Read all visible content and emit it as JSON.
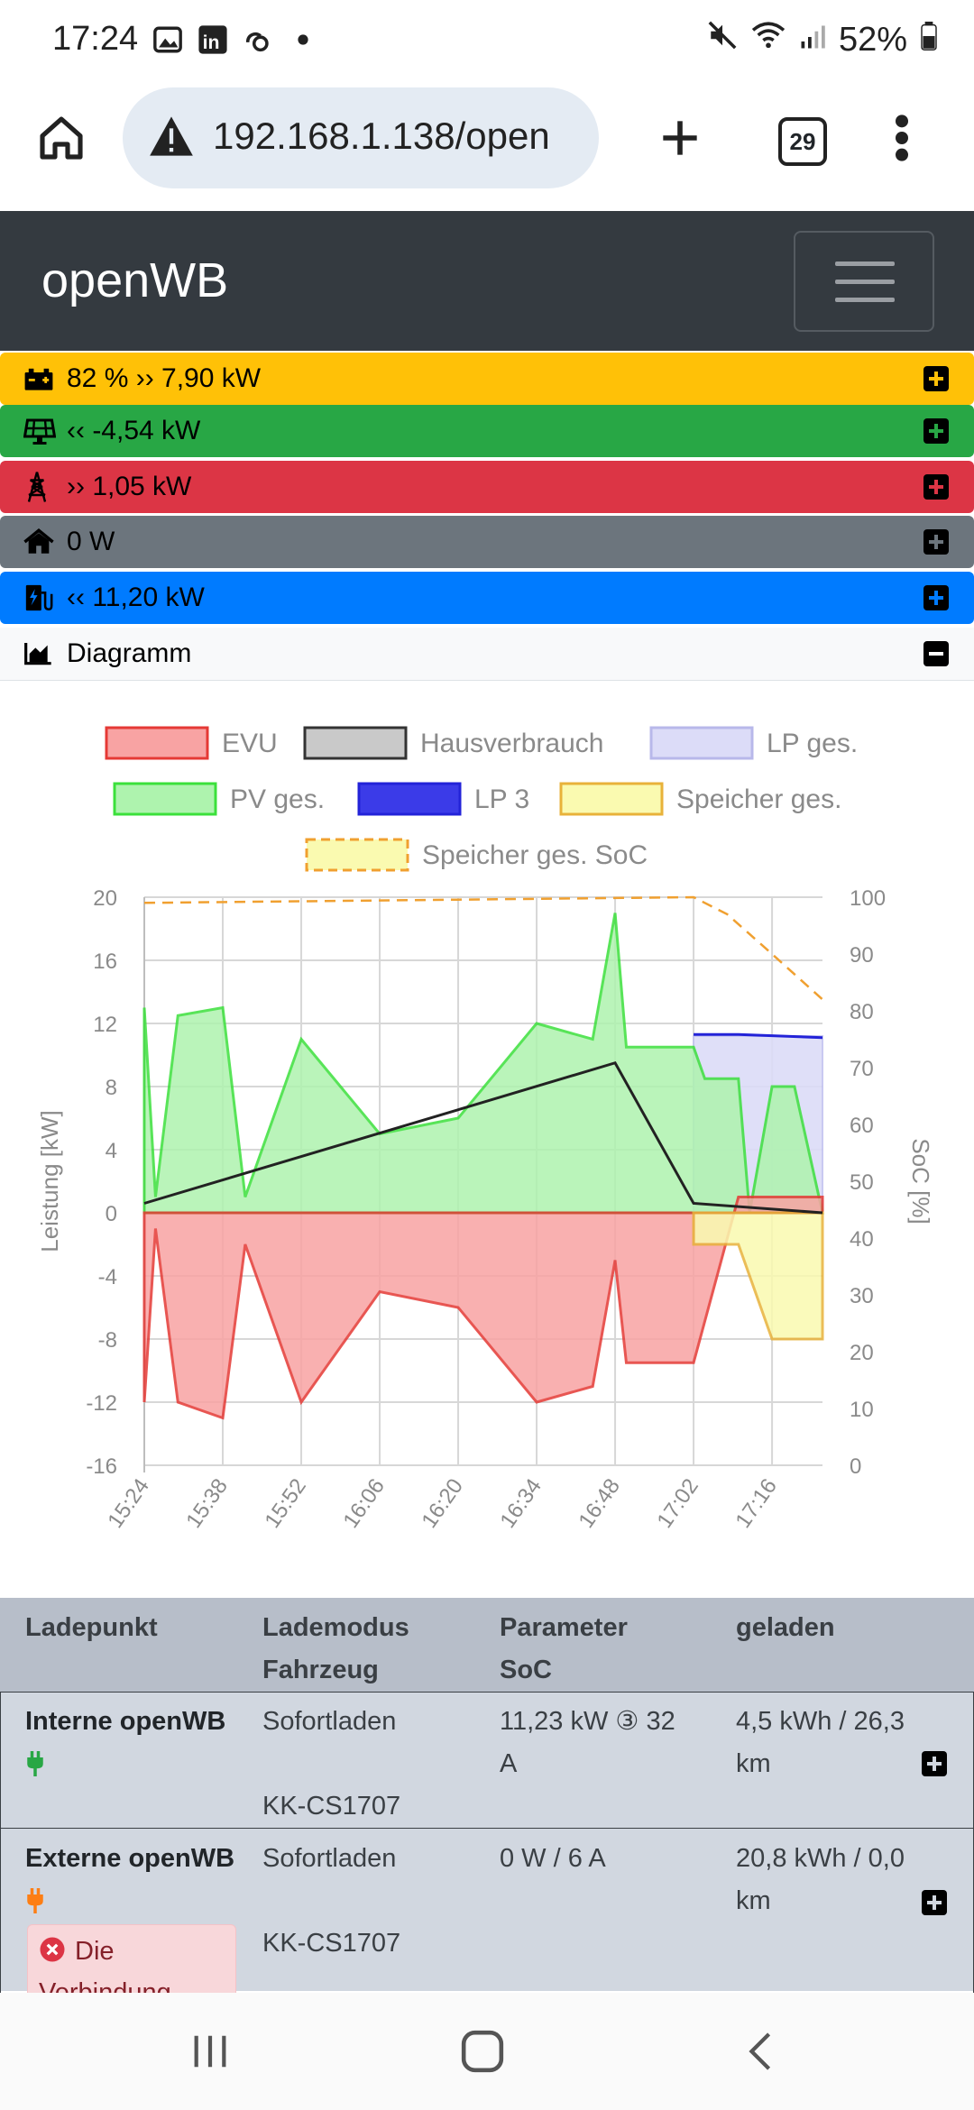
{
  "status_bar": {
    "time": "17:24",
    "battery": "52%",
    "icons": [
      "gallery-icon",
      "linkedin-icon",
      "wifi-calling-icon",
      "dot-icon",
      "mute-icon",
      "wifi-icon",
      "signal-icon",
      "battery-icon"
    ]
  },
  "browser": {
    "url": "192.168.1.138/open",
    "tab_count": "29"
  },
  "navbar": {
    "brand": "openWB"
  },
  "rows": {
    "battery": {
      "text": "82 % ›› 7,90 kW",
      "color": "#ffc107"
    },
    "pv": {
      "text": "‹‹ -4,54 kW",
      "color": "#28a745"
    },
    "grid": {
      "text": "›› 1,05 kW",
      "color": "#dc3545"
    },
    "house": {
      "text": "0 W",
      "color": "#6c757d"
    },
    "charge": {
      "text": "‹‹ 11,20 kW",
      "color": "#007bff"
    },
    "diagram": {
      "text": "Diagramm",
      "color": "#f8f9fa"
    }
  },
  "chart_data": {
    "type": "area",
    "legend": [
      "EVU",
      "Hausverbrauch",
      "LP ges.",
      "PV ges.",
      "LP 3",
      "Speicher ges.",
      "Speicher ges. SoC"
    ],
    "ylabel": "Leistung [kW]",
    "y2label": "SoC [%]",
    "ylim": [
      -16,
      20
    ],
    "y2lim": [
      0,
      100
    ],
    "yticks": [
      "20",
      "16",
      "12",
      "8",
      "4",
      "0",
      "-4",
      "-8",
      "-12",
      "-16"
    ],
    "y2ticks": [
      "100",
      "90",
      "80",
      "70",
      "60",
      "50",
      "40",
      "30",
      "20",
      "10",
      "0"
    ],
    "xticks": [
      "15:24",
      "15:38",
      "15:52",
      "16:06",
      "16:20",
      "16:34",
      "16:48",
      "17:02",
      "17:16"
    ],
    "colors": {
      "EVU": "#f44336",
      "Hausverbrauch": "#222222",
      "LP ges.": "#7b79e0",
      "PV ges.": "#3be03b",
      "LP 3": "#2323d8",
      "Speicher ges.": "#e8b23a",
      "Speicher ges. SoC": "#f0a030"
    },
    "series": [
      {
        "name": "PV ges.",
        "x": [
          "15:24",
          "15:26",
          "15:30",
          "15:38",
          "15:42",
          "15:52",
          "16:06",
          "16:20",
          "16:34",
          "16:44",
          "16:48",
          "16:50",
          "17:02",
          "17:04",
          "17:10",
          "17:12",
          "17:16",
          "17:20",
          "17:25"
        ],
        "values": [
          13,
          1,
          12.5,
          13,
          1,
          11,
          5,
          6,
          12,
          11,
          19,
          10.5,
          10.5,
          8.5,
          8.5,
          0,
          8,
          8,
          0
        ]
      },
      {
        "name": "EVU",
        "x": [
          "15:24",
          "15:26",
          "15:30",
          "15:38",
          "15:42",
          "15:52",
          "16:06",
          "16:20",
          "16:34",
          "16:44",
          "16:48",
          "16:50",
          "17:02",
          "17:10",
          "17:16",
          "17:25"
        ],
        "values": [
          -12,
          -1,
          -12,
          -13,
          -2,
          -12,
          -5,
          -6,
          -12,
          -11,
          -3,
          -9.5,
          -9.5,
          1,
          1,
          1
        ]
      },
      {
        "name": "Hausverbrauch",
        "x": [
          "15:24",
          "16:48",
          "17:02",
          "17:25"
        ],
        "values": [
          0.6,
          9.5,
          0.6,
          0
        ]
      },
      {
        "name": "LP ges.",
        "x": [
          "17:02",
          "17:10",
          "17:25"
        ],
        "values": [
          11.2,
          11.2,
          11.2
        ]
      },
      {
        "name": "LP 3",
        "x": [
          "17:02",
          "17:10",
          "17:25"
        ],
        "values": [
          11.3,
          11.3,
          11.1
        ]
      },
      {
        "name": "Speicher ges.",
        "x": [
          "17:02",
          "17:10",
          "17:16",
          "17:25"
        ],
        "values": [
          -2,
          -2,
          -8,
          -8
        ]
      },
      {
        "name": "Speicher ges. SoC",
        "x": [
          "15:24",
          "17:02",
          "17:08",
          "17:16",
          "17:25"
        ],
        "values": [
          99,
          100,
          97,
          90,
          82
        ]
      }
    ]
  },
  "table": {
    "headers": [
      [
        "Ladepunkt",
        ""
      ],
      [
        "Lademodus",
        "Fahrzeug"
      ],
      [
        "Parameter",
        "SoC"
      ],
      [
        "geladen",
        ""
      ]
    ],
    "rows": [
      {
        "name": "Interne openWB",
        "mode": "Sofortladen",
        "vehicle": "KK-CS1707",
        "param": "11,23 kW ③ 32",
        "param2": "A",
        "charged": "4,5 kWh / 26,3",
        "charged2": "km",
        "plug_color": "#28a745"
      },
      {
        "name": "Externe openWB",
        "mode": "Sofortladen",
        "vehicle": "KK-CS1707",
        "param": "0 W / 6 A",
        "param2": "",
        "charged": "20,8 kWh / 0,0",
        "charged2": "km",
        "plug_color": "#fd7e14",
        "alert": "Die",
        "alert2": "Verbindung"
      }
    ]
  }
}
